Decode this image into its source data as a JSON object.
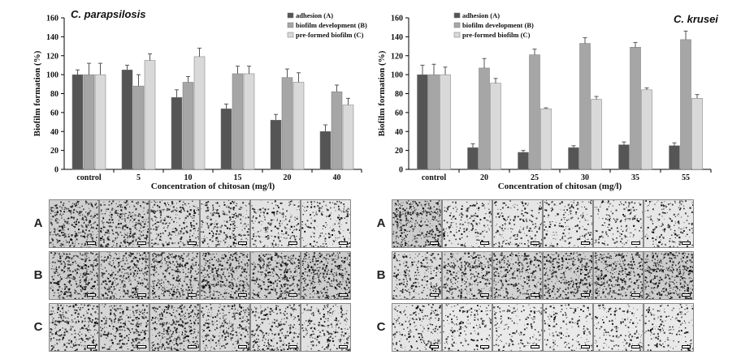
{
  "chart_data": [
    {
      "type": "bar",
      "title": "C. parapsilosis",
      "xlabel": "Concentration of chitosan (mg/l)",
      "ylabel": "Biofilm formation (%)",
      "ylim": [
        0,
        160
      ],
      "yticks": [
        0,
        20,
        40,
        60,
        80,
        100,
        120,
        140,
        160
      ],
      "categories": [
        "control",
        "5",
        "10",
        "15",
        "20",
        "40"
      ],
      "legend_position": "top-right",
      "series": [
        {
          "name": "adhesion (A)",
          "color": "#555555",
          "values": [
            100,
            105,
            76,
            64,
            52,
            40
          ],
          "errors": [
            5,
            5,
            8,
            5,
            6,
            7
          ]
        },
        {
          "name": "biofilm development (B)",
          "color": "#a6a6a6",
          "values": [
            100,
            88,
            92,
            101,
            97,
            82
          ],
          "errors": [
            12,
            12,
            6,
            8,
            9,
            7
          ]
        },
        {
          "name": "pre-formed biofilm (C)",
          "color": "#d9d9d9",
          "values": [
            100,
            115,
            119,
            101,
            92,
            68
          ],
          "errors": [
            12,
            7,
            9,
            8,
            10,
            7
          ]
        }
      ]
    },
    {
      "type": "bar",
      "title": "C. krusei",
      "xlabel": "Concentration of chitosan (mg/l)",
      "ylabel": "Biofilm formation (%)",
      "ylim": [
        0,
        160
      ],
      "yticks": [
        0,
        20,
        40,
        60,
        80,
        100,
        120,
        140,
        160
      ],
      "categories": [
        "control",
        "20",
        "25",
        "30",
        "35",
        "55"
      ],
      "legend_position": "top-left",
      "series": [
        {
          "name": "adhesion (A)",
          "color": "#555555",
          "values": [
            100,
            23,
            18,
            23,
            26,
            25
          ],
          "errors": [
            10,
            4,
            2,
            2,
            3,
            3
          ]
        },
        {
          "name": "biofilm development (B)",
          "color": "#a6a6a6",
          "values": [
            100,
            107,
            121,
            133,
            129,
            137
          ],
          "errors": [
            11,
            10,
            6,
            6,
            5,
            9
          ]
        },
        {
          "name": "pre-formed biofilm (C)",
          "color": "#d9d9d9",
          "values": [
            100,
            91,
            64,
            74,
            84,
            75
          ],
          "errors": [
            8,
            5,
            1,
            3,
            2,
            4
          ]
        }
      ]
    }
  ],
  "micrographs": {
    "left": {
      "row_labels": [
        "A",
        "B",
        "C"
      ],
      "tone": [
        [
          0.55,
          0.5,
          0.35,
          0.3,
          0.22,
          0.18
        ],
        [
          0.6,
          0.55,
          0.55,
          0.6,
          0.55,
          0.6
        ],
        [
          0.4,
          0.45,
          0.5,
          0.4,
          0.3,
          0.25
        ]
      ]
    },
    "right": {
      "row_labels": [
        "A",
        "B",
        "C"
      ],
      "tone": [
        [
          0.6,
          0.18,
          0.16,
          0.15,
          0.14,
          0.15
        ],
        [
          0.35,
          0.45,
          0.5,
          0.55,
          0.55,
          0.6
        ],
        [
          0.2,
          0.12,
          0.1,
          0.1,
          0.1,
          0.12
        ]
      ]
    }
  }
}
